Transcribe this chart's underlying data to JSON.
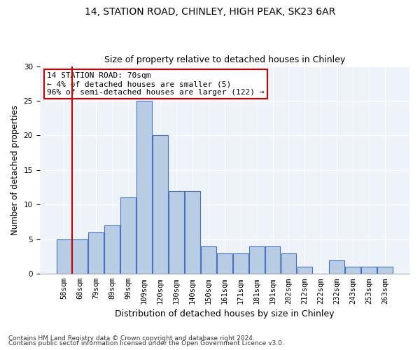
{
  "title1": "14, STATION ROAD, CHINLEY, HIGH PEAK, SK23 6AR",
  "title2": "Size of property relative to detached houses in Chinley",
  "xlabel": "Distribution of detached houses by size in Chinley",
  "ylabel": "Number of detached properties",
  "categories": [
    "58sqm",
    "68sqm",
    "79sqm",
    "89sqm",
    "99sqm",
    "109sqm",
    "120sqm",
    "130sqm",
    "140sqm",
    "150sqm",
    "161sqm",
    "171sqm",
    "181sqm",
    "191sqm",
    "202sqm",
    "212sqm",
    "222sqm",
    "232sqm",
    "243sqm",
    "253sqm",
    "263sqm"
  ],
  "values": [
    5,
    5,
    6,
    7,
    11,
    25,
    20,
    12,
    12,
    4,
    3,
    3,
    4,
    4,
    3,
    1,
    0,
    2,
    1,
    1,
    1
  ],
  "bar_color": "#b8cce4",
  "bar_edge_color": "#4472c4",
  "annotation_text": "14 STATION ROAD: 70sqm\n← 4% of detached houses are smaller (5)\n96% of semi-detached houses are larger (122) →",
  "annotation_box_color": "white",
  "annotation_box_edge_color": "#cc0000",
  "red_line_color": "#cc0000",
  "red_line_x": 0.525,
  "ylim": [
    0,
    30
  ],
  "yticks": [
    0,
    5,
    10,
    15,
    20,
    25,
    30
  ],
  "background_color": "#eef2f9",
  "footer1": "Contains HM Land Registry data © Crown copyright and database right 2024.",
  "footer2": "Contains public sector information licensed under the Open Government Licence v3.0.",
  "title1_fontsize": 10,
  "title2_fontsize": 9,
  "xlabel_fontsize": 9,
  "ylabel_fontsize": 8.5,
  "tick_fontsize": 7.5,
  "annotation_fontsize": 8,
  "footer_fontsize": 6.5
}
